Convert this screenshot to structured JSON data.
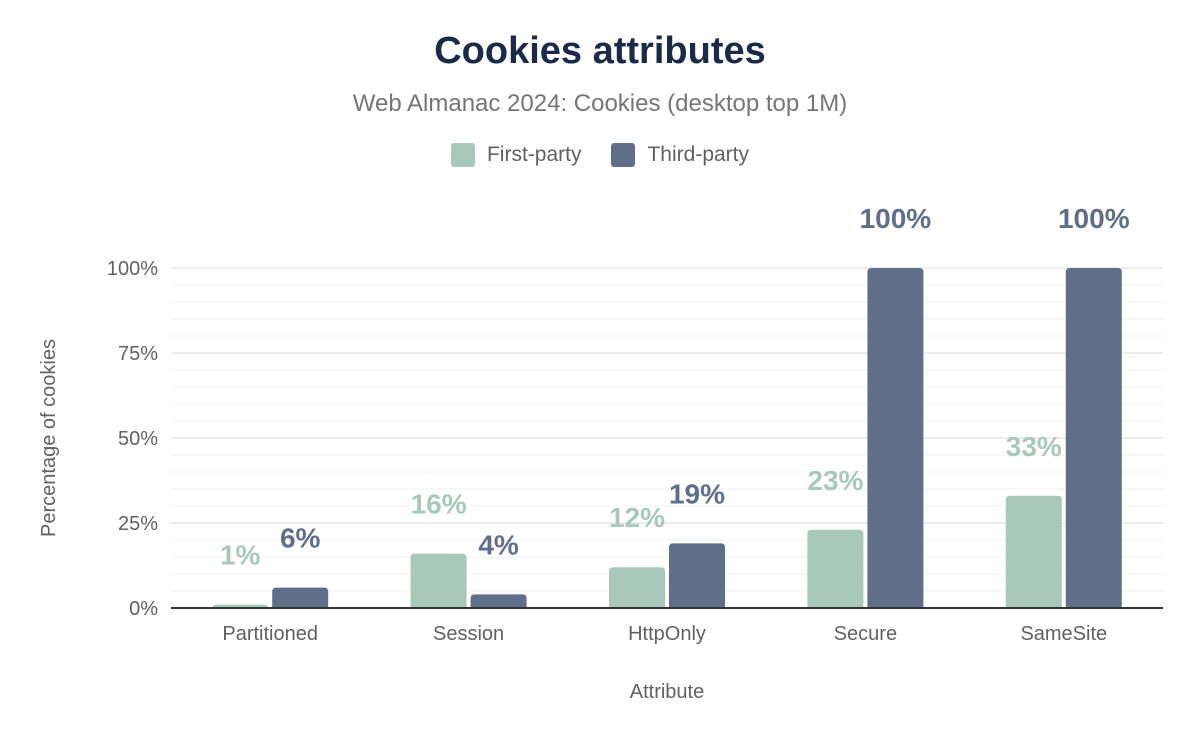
{
  "chart_data": {
    "type": "bar",
    "title": "Cookies attributes",
    "subtitle": "Web Almanac 2024: Cookies (desktop top 1M)",
    "xlabel": "Attribute",
    "ylabel": "Percentage of cookies",
    "categories": [
      "Partitioned",
      "Session",
      "HttpOnly",
      "Secure",
      "SameSite"
    ],
    "series": [
      {
        "name": "First-party",
        "color": "#a8c9b9",
        "values": [
          1,
          16,
          12,
          23,
          33
        ],
        "labels": [
          "1%",
          "16%",
          "12%",
          "23%",
          "33%"
        ]
      },
      {
        "name": "Third-party",
        "color": "#5f6f8a",
        "values": [
          6,
          4,
          19,
          100,
          100
        ],
        "labels": [
          "6%",
          "4%",
          "19%",
          "100%",
          "100%"
        ]
      }
    ],
    "ylim": [
      0,
      100
    ],
    "yticks": [
      0,
      25,
      50,
      75,
      100
    ],
    "ytick_labels": [
      "0%",
      "25%",
      "50%",
      "75%",
      "100%"
    ],
    "grid": true,
    "legend_position": "top"
  }
}
